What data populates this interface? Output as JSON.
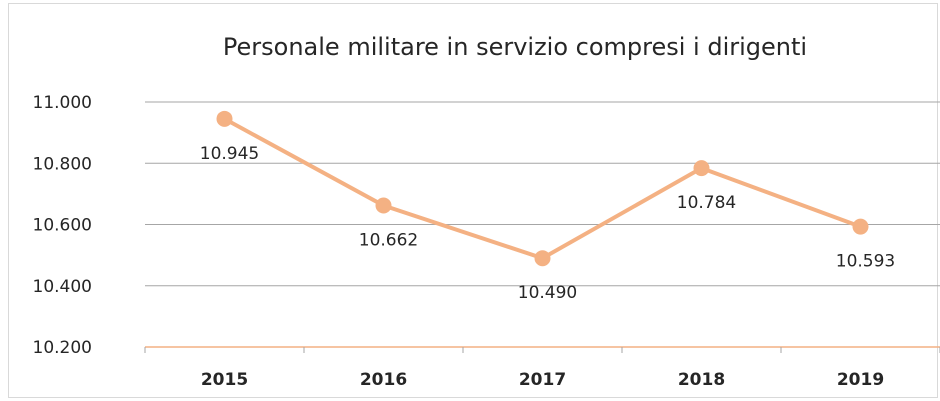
{
  "chart_data": {
    "type": "line",
    "title": "Personale militare in servizio compresi i dirigenti",
    "xlabel": "",
    "ylabel": "",
    "categories": [
      "2015",
      "2016",
      "2017",
      "2018",
      "2019"
    ],
    "series": [
      {
        "values": [
          10945,
          10662,
          10490,
          10784,
          10593
        ],
        "labels": [
          "10.945",
          "10.662",
          "10.490",
          "10.784",
          "10.593"
        ],
        "color": "#f4b183"
      }
    ],
    "ylim": [
      10200,
      11000
    ],
    "y_ticks": [
      10200,
      10400,
      10600,
      10800,
      11000
    ],
    "y_tick_labels": [
      "10.200",
      "10.400",
      "10.600",
      "10.800",
      "11.000"
    ],
    "grid": true,
    "legend": "none",
    "colors": {
      "line": "#f4b183",
      "gridline": "#a6a6a6",
      "x_axis": "#f4b183",
      "text": "#262626"
    }
  }
}
